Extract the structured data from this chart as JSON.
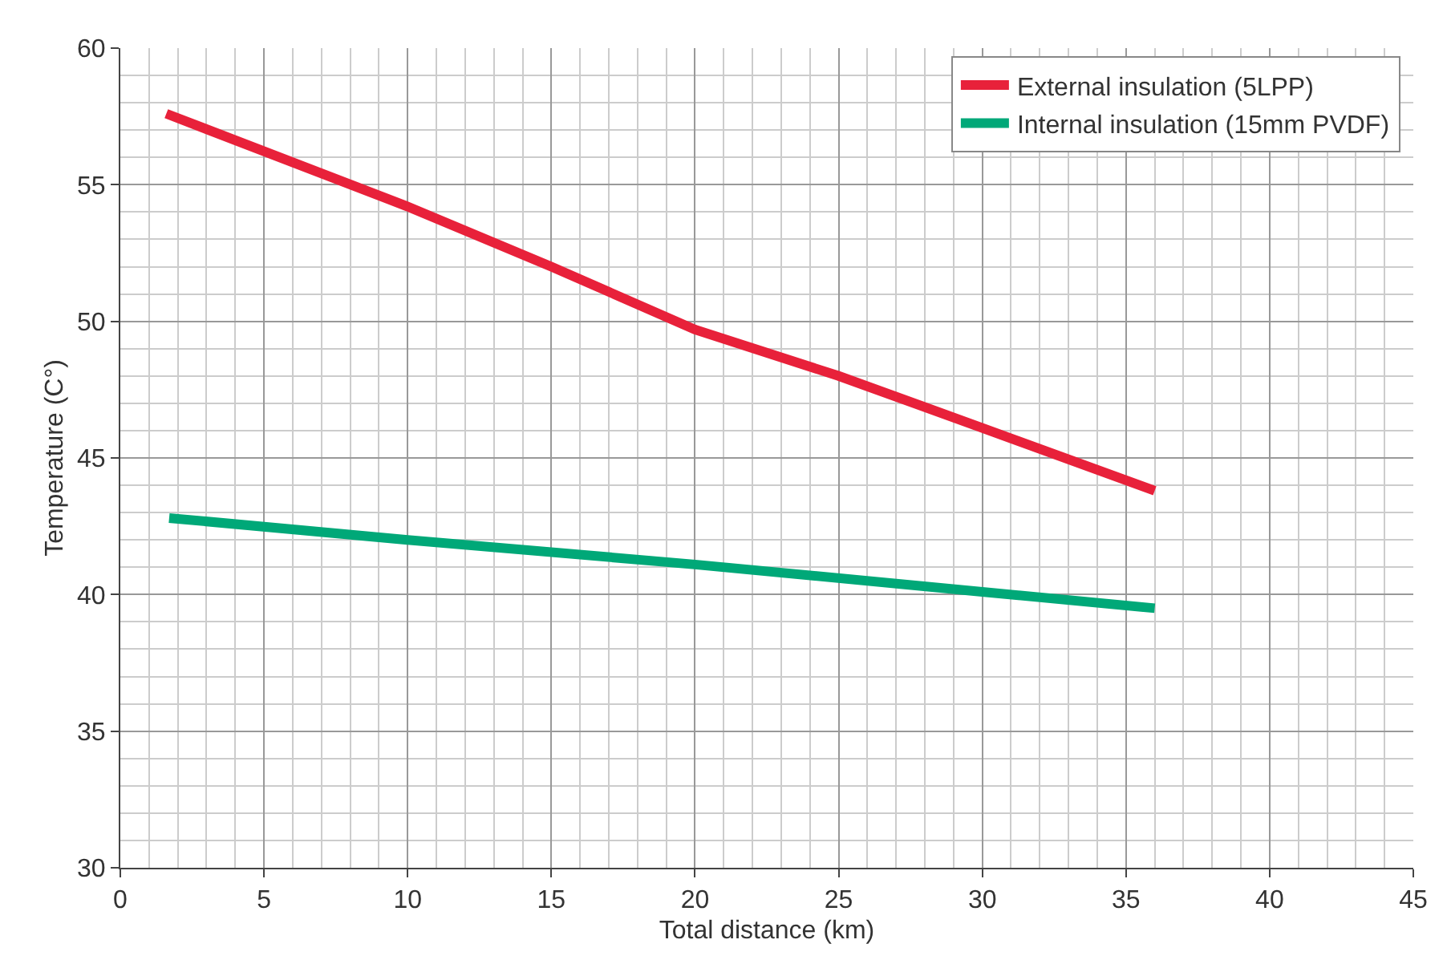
{
  "chart_data": {
    "type": "line",
    "xlabel": "Total distance (km)",
    "ylabel": "Temperature (C°)",
    "xlim": [
      0,
      45
    ],
    "xticks": [
      0,
      5,
      10,
      15,
      20,
      25,
      30,
      35,
      40,
      45
    ],
    "ylim": [
      30,
      60
    ],
    "yticks": [
      30,
      35,
      40,
      45,
      50,
      55,
      60
    ],
    "grid": true,
    "legend": "top right",
    "marker": "none",
    "line_style": "solid",
    "series": [
      {
        "name": "External insulation (5LPP)",
        "color": "#e8213a",
        "x": [
          1.6,
          10,
          15,
          20,
          25,
          30,
          36
        ],
        "values": [
          57.6,
          54.2,
          52.0,
          49.7,
          48.0,
          46.1,
          43.8
        ]
      },
      {
        "name": "Internal insulation (15mm PVDF)",
        "color": "#00a878",
        "x": [
          1.7,
          10,
          20,
          30,
          36
        ],
        "values": [
          42.8,
          42.0,
          41.1,
          40.1,
          39.5
        ]
      }
    ]
  }
}
